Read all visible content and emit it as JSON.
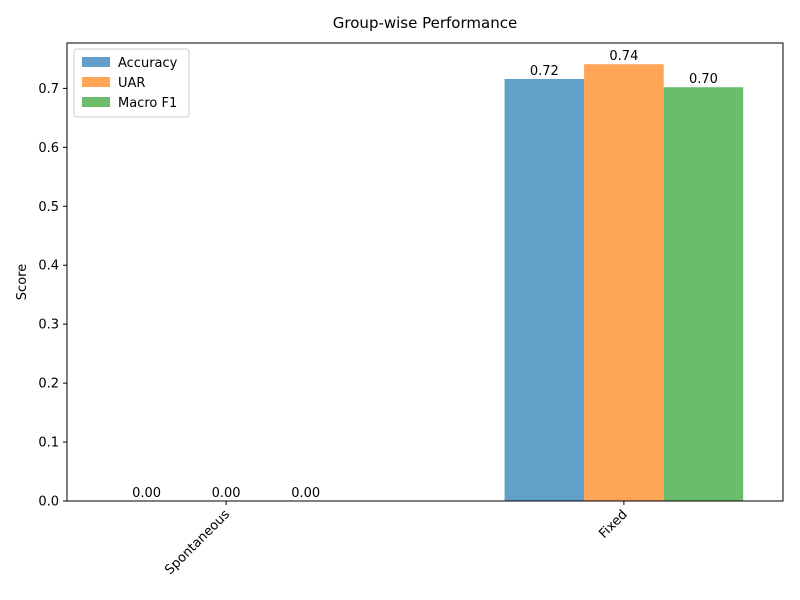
{
  "chart_data": {
    "type": "bar",
    "title": "Group-wise Performance",
    "xlabel": "",
    "ylabel": "Score",
    "categories": [
      "Spontaneous",
      "Fixed"
    ],
    "series": [
      {
        "name": "Accuracy",
        "values": [
          0.0,
          0.716
        ],
        "labels": [
          "0.00",
          "0.72"
        ],
        "color": "#1f77b4"
      },
      {
        "name": "UAR",
        "values": [
          0.0,
          0.741
        ],
        "labels": [
          "0.00",
          "0.74"
        ],
        "color": "#ff7f0e"
      },
      {
        "name": "Macro F1",
        "values": [
          0.0,
          0.702
        ],
        "labels": [
          "0.00",
          "0.70"
        ],
        "color": "#2ca02c"
      }
    ],
    "ylim": [
      0,
      0.777
    ],
    "yticks": [
      0.0,
      0.1,
      0.2,
      0.3,
      0.4,
      0.5,
      0.6,
      0.7
    ],
    "ytick_labels": [
      "0.0",
      "0.1",
      "0.2",
      "0.3",
      "0.4",
      "0.5",
      "0.6",
      "0.7"
    ],
    "bar_alpha": 0.7,
    "legend_position": "top-left",
    "grid": false
  }
}
